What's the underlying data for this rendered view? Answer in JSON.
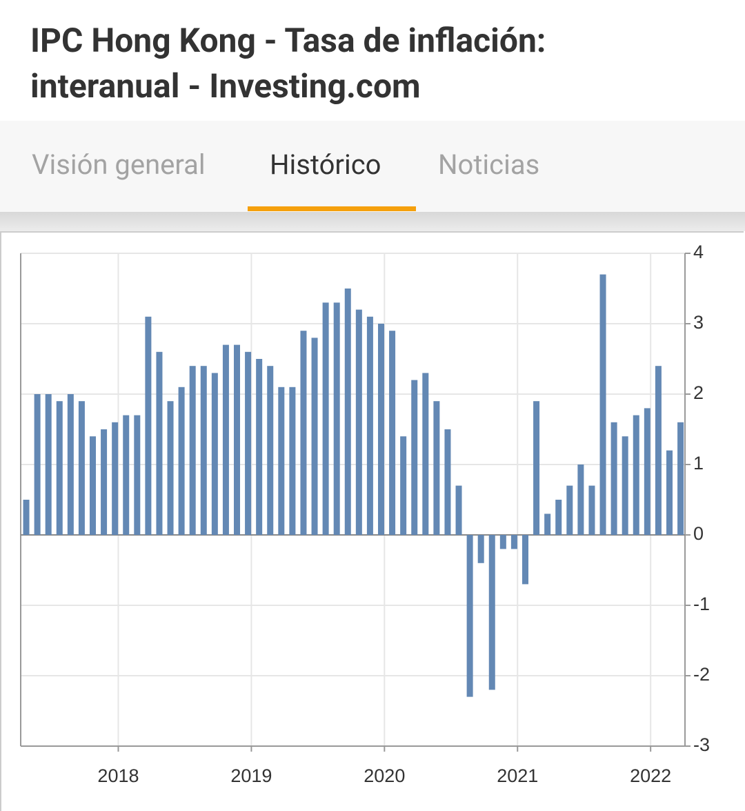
{
  "header": {
    "title_lines": [
      "IPC Hong Kong - Tasa de inflación:",
      "interanual - Investing.com"
    ]
  },
  "tabs": [
    "Visión general",
    "Histórico",
    "Noticias"
  ],
  "active_tab": 1,
  "chart_data": {
    "type": "bar",
    "categories": [
      null,
      null,
      null,
      null,
      null,
      null,
      null,
      null,
      null,
      null,
      null,
      null,
      null,
      null,
      null,
      null,
      null,
      null,
      null,
      null,
      null,
      null,
      null,
      null,
      null,
      null,
      null,
      null,
      null,
      null,
      null,
      null,
      null,
      null,
      null,
      null,
      null,
      null,
      null,
      null,
      null,
      null,
      null,
      null,
      null,
      null,
      null,
      null,
      null,
      null,
      null,
      null,
      null,
      null,
      null,
      null,
      null,
      null,
      null,
      null
    ],
    "values": [
      0.5,
      2.0,
      2.0,
      1.9,
      2.0,
      1.9,
      1.4,
      1.5,
      1.6,
      1.7,
      1.7,
      3.1,
      2.6,
      1.9,
      2.1,
      2.4,
      2.4,
      2.3,
      2.7,
      2.7,
      2.6,
      2.5,
      2.4,
      2.1,
      2.1,
      2.9,
      2.8,
      3.3,
      3.3,
      3.5,
      3.2,
      3.1,
      3.0,
      2.9,
      1.4,
      2.2,
      2.3,
      1.9,
      1.5,
      0.7,
      -2.3,
      -0.4,
      -2.2,
      -0.2,
      -0.2,
      -0.7,
      1.9,
      0.3,
      0.5,
      0.7,
      1.0,
      0.7,
      3.7,
      1.6,
      1.4,
      1.7,
      1.8,
      2.4,
      1.2,
      1.6
    ],
    "color": "#6388b4",
    "ylim": [
      -3,
      4
    ],
    "yticks": [
      -3,
      -2,
      -1,
      0,
      1,
      2,
      3,
      4
    ],
    "xlim": [
      -0.5,
      59.4
    ],
    "xticks": [
      {
        "value": 8.3,
        "label": "2018"
      },
      {
        "value": 20.3,
        "label": "2019"
      },
      {
        "value": 32.3,
        "label": "2020"
      },
      {
        "value": 44.3,
        "label": "2021"
      },
      {
        "value": 56.3,
        "label": "2022"
      }
    ],
    "grid": true
  }
}
